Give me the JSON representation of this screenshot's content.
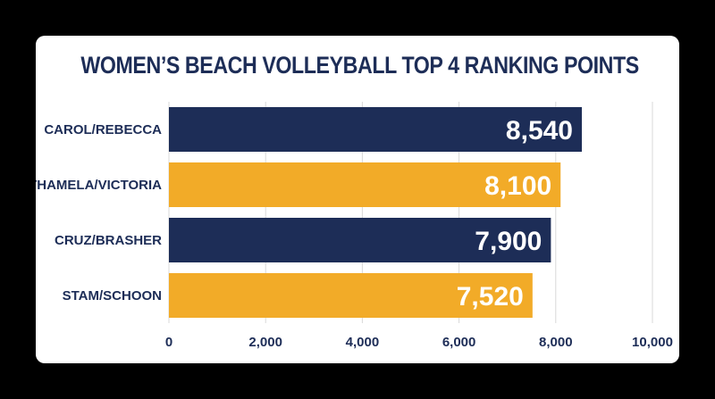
{
  "chart_data": {
    "type": "bar",
    "orientation": "horizontal",
    "title": "WOMEN’S BEACH VOLLEYBALL TOP 4 RANKING POINTS",
    "categories": [
      "CAROL/REBECCA",
      "THAMELA/VICTORIA",
      "CRUZ/BRASHER",
      "STAM/SCHOON"
    ],
    "values": [
      8540,
      8100,
      7900,
      7520
    ],
    "value_labels": [
      "8,540",
      "8,100",
      "7,900",
      "7,520"
    ],
    "bar_colors": [
      "#1d2d57",
      "#f2ab28",
      "#1d2d57",
      "#f2ab28"
    ],
    "xlim": [
      0,
      10000
    ],
    "xticks": [
      0,
      2000,
      4000,
      6000,
      8000,
      10000
    ],
    "xtick_labels": [
      "0",
      "2,000",
      "4,000",
      "6,000",
      "8,000",
      "10,000"
    ],
    "grid": "vertical"
  },
  "colors": {
    "background": "#000000",
    "card": "#ffffff",
    "navy": "#1d2d57",
    "gold": "#f2ab28",
    "grid": "#d9d9d9"
  }
}
